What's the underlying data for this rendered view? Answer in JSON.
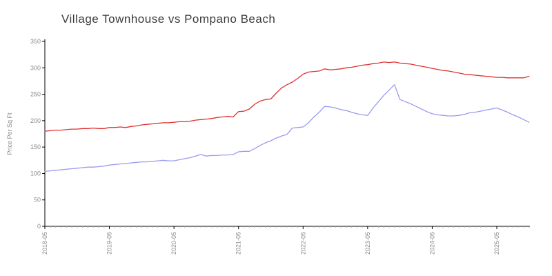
{
  "chart_data": {
    "type": "line",
    "title": "Village Townhouse vs Pompano Beach",
    "xlabel": "",
    "ylabel": "Price Per Sq Ft",
    "ylim": [
      0,
      350
    ],
    "y_tick_step": 50,
    "y_tick_labels": [
      "0",
      "50",
      "100",
      "150",
      "200",
      "250",
      "300",
      "350"
    ],
    "x_major_tick_every": 12,
    "x_major_tick_labels": [
      "2018-05",
      "2019-05",
      "2020-05",
      "2021-05",
      "2022-05",
      "2023-05",
      "2024-05",
      "2025-05"
    ],
    "grid": false,
    "legend": "none",
    "categories": [
      "2018-05",
      "2018-06",
      "2018-07",
      "2018-08",
      "2018-09",
      "2018-10",
      "2018-11",
      "2018-12",
      "2019-01",
      "2019-02",
      "2019-03",
      "2019-04",
      "2019-05",
      "2019-06",
      "2019-07",
      "2019-08",
      "2019-09",
      "2019-10",
      "2019-11",
      "2019-12",
      "2020-01",
      "2020-02",
      "2020-03",
      "2020-04",
      "2020-05",
      "2020-06",
      "2020-07",
      "2020-08",
      "2020-09",
      "2020-10",
      "2020-11",
      "2020-12",
      "2021-01",
      "2021-02",
      "2021-03",
      "2021-04",
      "2021-05",
      "2021-06",
      "2021-07",
      "2021-08",
      "2021-09",
      "2021-10",
      "2021-11",
      "2021-12",
      "2022-01",
      "2022-02",
      "2022-03",
      "2022-04",
      "2022-05",
      "2022-06",
      "2022-07",
      "2022-08",
      "2022-09",
      "2022-10",
      "2022-11",
      "2022-12",
      "2023-01",
      "2023-02",
      "2023-03",
      "2023-04",
      "2023-05",
      "2023-06",
      "2023-07",
      "2023-08",
      "2023-09",
      "2023-10",
      "2023-11",
      "2023-12",
      "2024-01",
      "2024-02",
      "2024-03",
      "2024-04",
      "2024-05",
      "2024-06",
      "2024-07",
      "2024-08",
      "2024-09",
      "2024-10",
      "2024-11",
      "2024-12",
      "2025-01",
      "2025-02",
      "2025-03",
      "2025-04",
      "2025-05",
      "2025-06",
      "2025-07",
      "2025-08",
      "2025-09",
      "2025-10",
      "2025-11"
    ],
    "series": [
      {
        "name": "Village Townhouse",
        "color": "#e03030",
        "values": [
          180,
          181,
          182,
          182,
          183,
          184,
          184,
          185,
          185,
          186,
          185,
          185,
          187,
          187,
          188,
          187,
          189,
          190,
          192,
          193,
          194,
          195,
          196,
          196,
          197,
          198,
          198,
          199,
          201,
          202,
          203,
          204,
          206,
          207,
          208,
          207,
          217,
          218,
          222,
          231,
          237,
          240,
          241,
          252,
          262,
          268,
          273,
          280,
          288,
          292,
          293,
          294,
          298,
          296,
          297,
          298,
          300,
          301,
          303,
          305,
          306,
          308,
          309,
          311,
          310,
          311,
          309,
          308,
          307,
          305,
          303,
          301,
          299,
          297,
          295,
          294,
          292,
          290,
          288,
          287,
          286,
          285,
          284,
          283,
          282,
          282,
          281,
          281,
          281,
          281,
          284
        ]
      },
      {
        "name": "Pompano Beach",
        "color": "#9a9af0",
        "values": [
          104,
          105,
          106,
          107,
          108,
          109,
          110,
          111,
          112,
          112,
          113,
          114,
          116,
          117,
          118,
          119,
          120,
          121,
          122,
          122,
          123,
          124,
          125,
          124,
          124,
          126,
          128,
          130,
          133,
          136,
          133,
          134,
          134,
          135,
          135,
          136,
          141,
          142,
          142,
          147,
          153,
          158,
          162,
          167,
          171,
          174,
          186,
          187,
          188,
          196,
          207,
          216,
          227,
          226,
          224,
          221,
          219,
          216,
          213,
          211,
          210,
          224,
          236,
          248,
          258,
          268,
          240,
          236,
          232,
          227,
          222,
          217,
          213,
          211,
          210,
          209,
          209,
          210,
          212,
          215,
          216,
          218,
          220,
          222,
          224,
          220,
          216,
          211,
          207,
          202,
          197
        ]
      }
    ]
  },
  "axis": {
    "axis_color": "#000000",
    "minor_tick_color": "#aaaaaa",
    "tick_label_color": "#8a8a8a",
    "title_color": "#3b3b3b"
  }
}
